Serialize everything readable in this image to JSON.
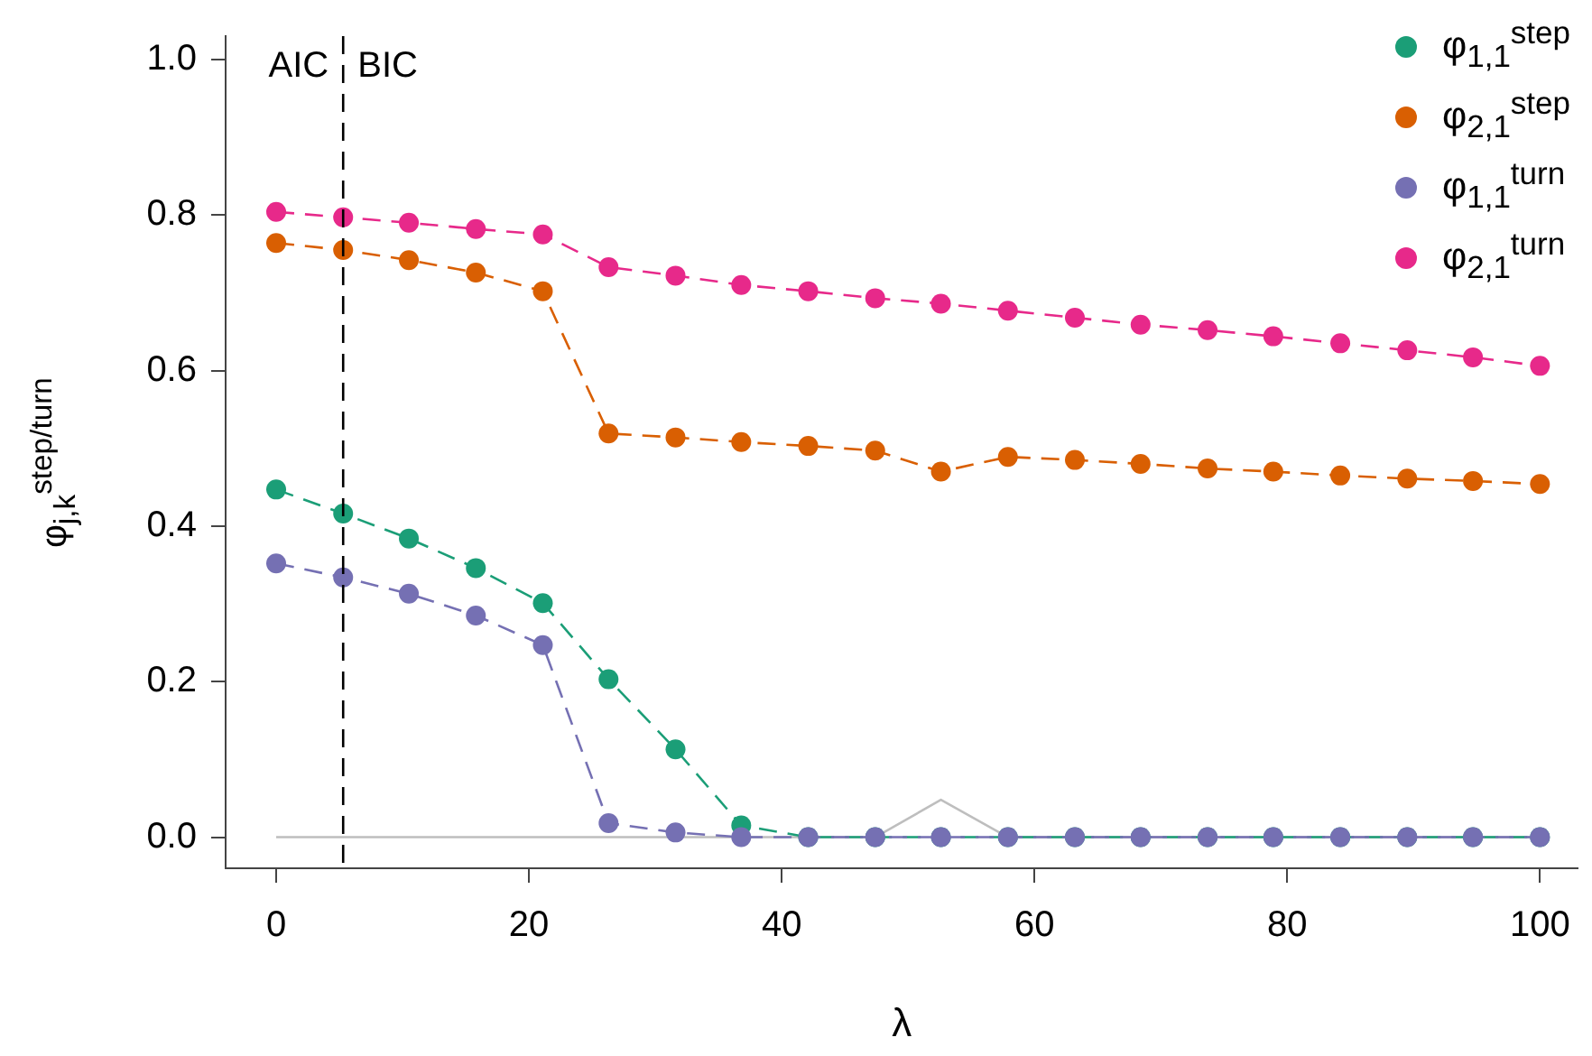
{
  "chart_data": {
    "type": "line",
    "xlabel": "λ",
    "ylabel": "φ$_{j,k}$$^{step/turn}$",
    "x": [
      0,
      5.3,
      10.5,
      15.8,
      21.1,
      26.3,
      31.6,
      36.8,
      42.1,
      47.4,
      52.6,
      57.9,
      63.2,
      68.4,
      73.7,
      78.9,
      84.2,
      89.5,
      94.7,
      100
    ],
    "series": [
      {
        "color": "#bebebe",
        "marker": "none",
        "line_style": "solid",
        "values": [
          0,
          0,
          0,
          0,
          0,
          0,
          0,
          0,
          0,
          0,
          0.048,
          0,
          0,
          0,
          0,
          0,
          0,
          0,
          0,
          0
        ]
      },
      {
        "name": "φ$_{1,1}$$^{step}$",
        "color": "#1b9e77",
        "values": [
          0.447,
          0.416,
          0.384,
          0.346,
          0.301,
          0.203,
          0.113,
          0.015,
          0,
          0,
          0,
          0,
          0,
          0,
          0,
          0,
          0,
          0,
          0,
          0
        ]
      },
      {
        "name": "φ$_{2,1}$$^{step}$",
        "color": "#d95f02",
        "values": [
          0.764,
          0.755,
          0.742,
          0.726,
          0.702,
          0.519,
          0.514,
          0.508,
          0.503,
          0.497,
          0.47,
          0.489,
          0.485,
          0.48,
          0.474,
          0.47,
          0.465,
          0.461,
          0.458,
          0.454
        ]
      },
      {
        "name": "φ$_{1,1}$$^{turn}$",
        "color": "#7570b3",
        "values": [
          0.352,
          0.334,
          0.313,
          0.285,
          0.247,
          0.018,
          0.006,
          0,
          0,
          0,
          0,
          0,
          0,
          0,
          0,
          0,
          0,
          0,
          0,
          0
        ]
      },
      {
        "name": "φ$_{2,1}$$^{turn}$",
        "color": "#e7298a",
        "values": [
          0.804,
          0.797,
          0.79,
          0.782,
          0.775,
          0.733,
          0.722,
          0.71,
          0.702,
          0.693,
          0.686,
          0.677,
          0.668,
          0.659,
          0.652,
          0.644,
          0.635,
          0.626,
          0.617,
          0.606
        ]
      }
    ],
    "xlim": [
      -4,
      103
    ],
    "xticks": [
      0,
      20,
      40,
      60,
      80,
      100
    ],
    "ylim": [
      -0.04,
      1.03
    ],
    "yticks": [
      {
        "value": 0,
        "label": "0.0"
      },
      {
        "value": 0.2,
        "label": "0.2"
      },
      {
        "value": 0.4,
        "label": "0.4"
      },
      {
        "value": 0.6,
        "label": "0.6"
      },
      {
        "value": 0.8,
        "label": "0.8"
      },
      {
        "value": 1,
        "label": "1.0"
      }
    ],
    "ref_lines": [
      {
        "axis": "x",
        "value": 5.3,
        "label": "AIC",
        "line_style": "dashed",
        "color": "#000000"
      }
    ],
    "annotations": [
      {
        "text": "BIC",
        "x": 5.3,
        "y": 0.99
      }
    ],
    "marker": "circle",
    "line_style": "dashed",
    "grid": false,
    "legend": "top right"
  }
}
